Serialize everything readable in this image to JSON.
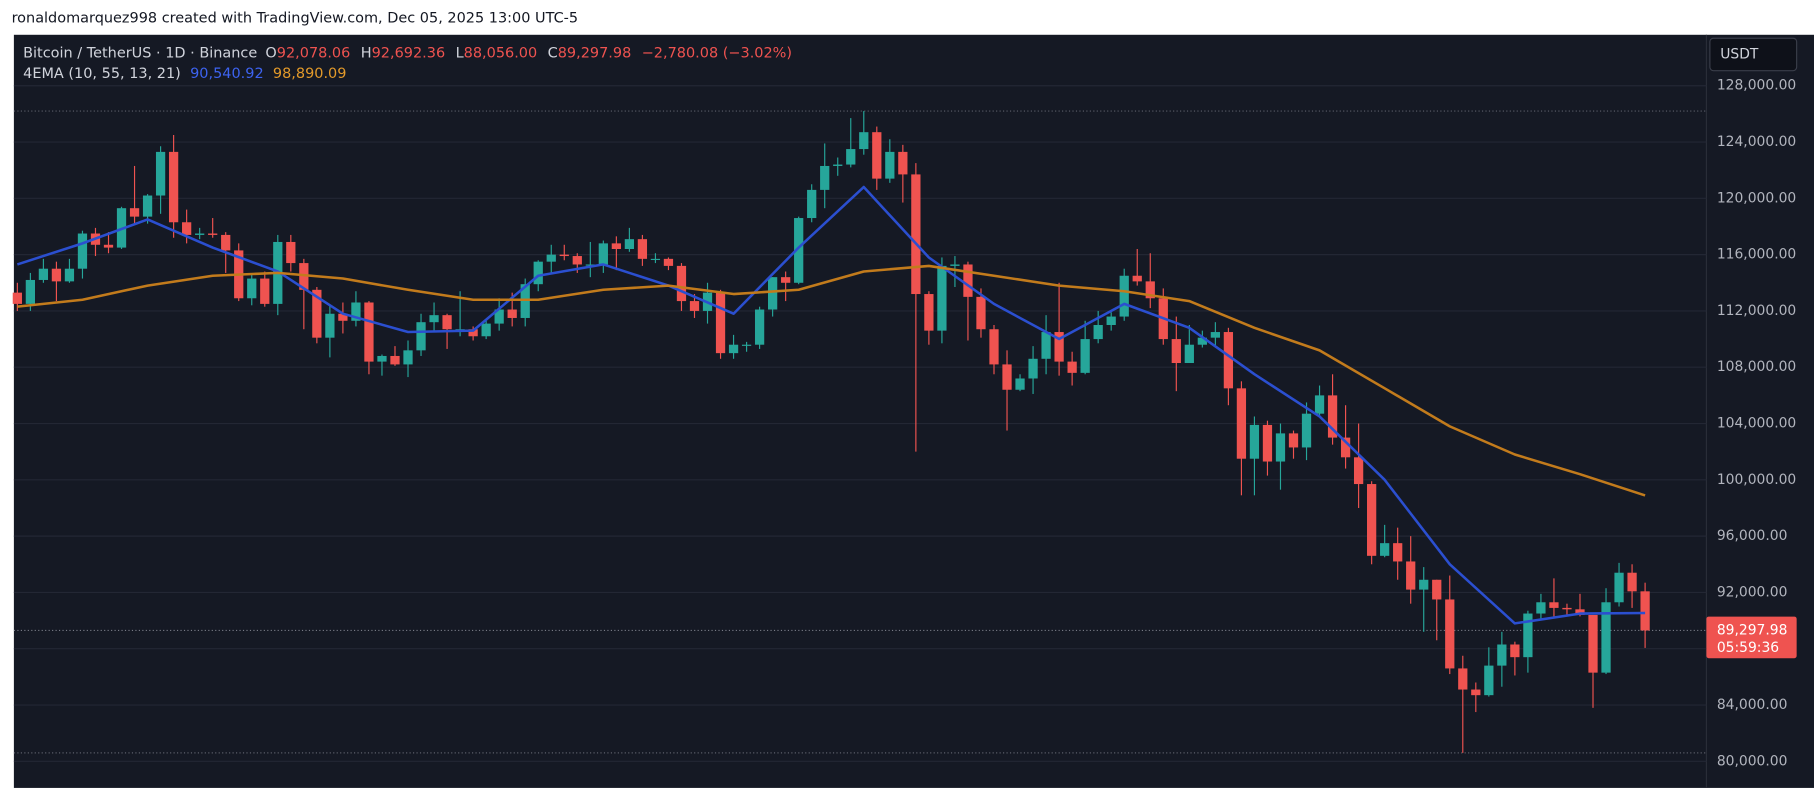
{
  "header": {
    "text": "ronaldomarquez998 created with TradingView.com, Dec 05, 2025 13:00 UTC-5"
  },
  "chart_data": {
    "type": "candlestick",
    "legend": {
      "symbol": "Bitcoin / TetherUS · 1D · Binance",
      "fields": [
        {
          "key": "O",
          "text": "92,078.06"
        },
        {
          "key": "H",
          "text": "92,692.36"
        },
        {
          "key": "L",
          "text": "88,056.00"
        },
        {
          "key": "C",
          "text": "89,297.98"
        }
      ],
      "change": "−2,780.08 (−3.02%)",
      "indicator": "4EMA (10, 55, 13, 21)"
    },
    "currency": "USDT",
    "last_price_label": "89,297.98",
    "countdown": "05:59:36",
    "up_color": "#26a69a",
    "down_color": "#ef5350",
    "ylim": [
      78110,
      131620
    ],
    "yticks": [
      {
        "value": 80000,
        "label": "80,000.00"
      },
      {
        "value": 84000,
        "label": "84,000.00"
      },
      {
        "value": 88000,
        "label": "88,000.00"
      },
      {
        "value": 92000,
        "label": "92,000.00"
      },
      {
        "value": 96000,
        "label": "96,000.00"
      },
      {
        "value": 100000,
        "label": "100,000.00"
      },
      {
        "value": 104000,
        "label": "104,000.00"
      },
      {
        "value": 108000,
        "label": "108,000.00"
      },
      {
        "value": 112000,
        "label": "112,000.00"
      },
      {
        "value": 116000,
        "label": "116,000.00"
      },
      {
        "value": 120000,
        "label": "120,000.00"
      },
      {
        "value": 124000,
        "label": "124,000.00"
      },
      {
        "value": 128000,
        "label": "128,000.00"
      }
    ],
    "grid": true,
    "open": [
      113300,
      112500,
      114200,
      115000,
      114100,
      115000,
      117500,
      116700,
      116500,
      119300,
      118700,
      120200,
      123300,
      118300,
      117400,
      117500,
      117400,
      116300,
      112900,
      114300,
      112500,
      116900,
      115400,
      113500,
      110100,
      111800,
      111300,
      112600,
      108400,
      108800,
      108200,
      109200,
      111200,
      111700,
      110700,
      110700,
      110200,
      111100,
      112100,
      111500,
      113900,
      115500,
      116000,
      115900,
      115300,
      115300,
      116800,
      116400,
      117100,
      115700,
      115700,
      115200,
      112700,
      112000,
      113300,
      109000,
      109600,
      109600,
      112100,
      114400,
      114000,
      118600,
      120600,
      122300,
      122400,
      123500,
      124700,
      121400,
      123300,
      121700,
      113200,
      110600,
      115200,
      115300,
      113000,
      110700,
      108200,
      106400,
      107200,
      108600,
      110500,
      108400,
      107600,
      110000,
      111000,
      111600,
      114500,
      114100,
      112900,
      110000,
      108300,
      109600,
      110100,
      110500,
      106500,
      101500,
      103900,
      101300,
      103300,
      102300,
      104700,
      106000,
      103000,
      101600,
      99700,
      94600,
      95500,
      94200,
      92200,
      92900,
      91500,
      86600,
      85100,
      84700,
      86800,
      88300,
      87400,
      90500,
      91300,
      90900,
      90800,
      90400,
      86300,
      91300,
      93400,
      92078.06
    ],
    "high": [
      114000,
      114700,
      115700,
      115500,
      115700,
      117700,
      117900,
      117600,
      119400,
      122300,
      120300,
      123700,
      124500,
      119200,
      117900,
      118600,
      117600,
      116800,
      114600,
      114800,
      117400,
      117400,
      115700,
      113700,
      112400,
      112600,
      113400,
      112700,
      108900,
      109500,
      109900,
      111800,
      112600,
      111800,
      113400,
      110900,
      111300,
      112900,
      113300,
      114300,
      115600,
      116700,
      116700,
      116100,
      116900,
      117000,
      117300,
      117900,
      117400,
      116100,
      115800,
      115400,
      113200,
      114000,
      113500,
      110300,
      109800,
      112300,
      114400,
      114800,
      118700,
      121000,
      123900,
      122900,
      125700,
      126200,
      125100,
      124200,
      123800,
      122500,
      113400,
      115800,
      115900,
      115500,
      113600,
      111000,
      109200,
      107500,
      109500,
      111700,
      114000,
      109100,
      111300,
      112000,
      111900,
      115000,
      116400,
      116100,
      113600,
      111600,
      111000,
      110600,
      111200,
      110800,
      107000,
      104500,
      104200,
      104000,
      103500,
      105500,
      106700,
      107500,
      105300,
      104000,
      99900,
      96800,
      96600,
      96000,
      93800,
      92900,
      93200,
      87500,
      85600,
      88100,
      89200,
      88500,
      90700,
      91900,
      93000,
      91200,
      91900,
      90400,
      92300,
      94100,
      94000,
      92692.36
    ],
    "low": [
      112000,
      112000,
      114000,
      112700,
      114000,
      114300,
      115900,
      116100,
      116400,
      118100,
      118200,
      118900,
      117200,
      116800,
      117100,
      117200,
      114700,
      112700,
      112400,
      112300,
      111700,
      114800,
      110700,
      109700,
      108700,
      110400,
      110900,
      107500,
      107400,
      108100,
      107300,
      108800,
      110500,
      109300,
      110200,
      109900,
      110000,
      110600,
      110900,
      110900,
      113400,
      114700,
      115600,
      114700,
      114400,
      114700,
      114900,
      116200,
      115200,
      115400,
      114900,
      112000,
      111500,
      111100,
      108600,
      108600,
      109100,
      109300,
      111600,
      112700,
      113900,
      118300,
      119300,
      121600,
      122200,
      123100,
      120600,
      121100,
      119700,
      102000,
      109600,
      109700,
      113700,
      109900,
      110100,
      107500,
      103500,
      106300,
      106100,
      107500,
      107400,
      106700,
      107500,
      109700,
      110600,
      111300,
      113800,
      112200,
      109600,
      106300,
      108300,
      109400,
      109500,
      105300,
      98900,
      98900,
      100300,
      99300,
      101500,
      101400,
      104500,
      102500,
      100800,
      98000,
      94000,
      94500,
      92900,
      91200,
      89200,
      88600,
      86200,
      80600,
      83500,
      84600,
      85300,
      86100,
      86300,
      90100,
      90200,
      90400,
      90300,
      83800,
      86200,
      91000,
      90900,
      88056
    ],
    "close": [
      112500,
      114200,
      115000,
      114100,
      115000,
      117500,
      116700,
      116500,
      119300,
      118700,
      120200,
      123300,
      118300,
      117400,
      117500,
      117400,
      116300,
      112900,
      114300,
      112500,
      116900,
      115400,
      113500,
      110100,
      111800,
      111300,
      112600,
      108400,
      108800,
      108200,
      109200,
      111200,
      111700,
      110700,
      110700,
      110200,
      111100,
      112100,
      111500,
      113900,
      115500,
      116000,
      115900,
      115300,
      115300,
      116800,
      116400,
      117100,
      115700,
      115700,
      115200,
      112700,
      112000,
      113300,
      109000,
      109600,
      109600,
      112100,
      114400,
      114000,
      118600,
      120600,
      122300,
      122400,
      123500,
      124700,
      121400,
      123300,
      121700,
      113200,
      110600,
      115200,
      115300,
      113000,
      110700,
      108200,
      106400,
      107200,
      108600,
      110500,
      108400,
      107600,
      110000,
      111000,
      111600,
      114500,
      114100,
      112900,
      110000,
      108300,
      109600,
      110100,
      110500,
      106500,
      101500,
      103900,
      101300,
      103300,
      102300,
      104700,
      106000,
      103000,
      101600,
      99700,
      94600,
      95500,
      94200,
      92200,
      92900,
      91500,
      86600,
      85100,
      84700,
      86800,
      88300,
      87400,
      90500,
      91300,
      90900,
      90800,
      90400,
      86300,
      91300,
      93400,
      92078.06,
      89297.98
    ],
    "series": [
      {
        "color": "#2b4fd0",
        "legend_value": "90,540.92",
        "x": [
          0,
          5,
          10,
          15,
          20,
          25,
          30,
          35,
          40,
          45,
          50,
          55,
          60,
          65,
          70,
          75,
          80,
          85,
          90,
          95,
          100,
          105,
          110,
          115,
          120,
          125
        ],
        "values": [
          115300,
          116800,
          118500,
          116500,
          114800,
          111800,
          110500,
          110600,
          114500,
          115300,
          113800,
          111800,
          116500,
          120800,
          115800,
          112500,
          110000,
          112500,
          110800,
          107500,
          104500,
          100000,
          94000,
          89800,
          90500,
          90540.92
        ]
      },
      {
        "color": "#c27b1c",
        "legend_value": "98,890.09",
        "x": [
          0,
          5,
          10,
          15,
          20,
          25,
          30,
          35,
          40,
          45,
          50,
          55,
          60,
          65,
          70,
          75,
          80,
          85,
          90,
          95,
          100,
          105,
          110,
          115,
          120,
          125
        ],
        "values": [
          112300,
          112800,
          113800,
          114500,
          114700,
          114300,
          113500,
          112800,
          112800,
          113500,
          113800,
          113200,
          113500,
          114800,
          115200,
          114500,
          113800,
          113400,
          112700,
          110800,
          109200,
          106500,
          103800,
          101800,
          100400,
          98890.09
        ]
      }
    ]
  }
}
